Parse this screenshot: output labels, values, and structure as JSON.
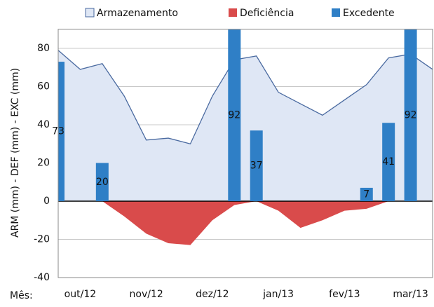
{
  "chart_data": {
    "type": "combo",
    "ylabel": "ARM (mm) - DEF (mm) - EXC (mm)",
    "xlabel": "Mês:",
    "categories": [
      null,
      "out/12",
      null,
      null,
      "nov/12",
      null,
      null,
      "dez/12",
      null,
      null,
      "jan/13",
      null,
      null,
      "fev/13",
      null,
      null,
      "mar/13",
      null
    ],
    "series": [
      {
        "name": "Armazenamento",
        "type": "area",
        "color": "#dfe7f5",
        "line_color": "#4a6aa0",
        "values": [
          79,
          69,
          72,
          55,
          32,
          33,
          30,
          55,
          74,
          76,
          57,
          51,
          45,
          53,
          61,
          75,
          77,
          69
        ]
      },
      {
        "name": "Deficiência",
        "type": "area",
        "color": "#d94b4b",
        "values": [
          0,
          0,
          0,
          -8,
          -17,
          -22,
          -23,
          -10,
          -2,
          0,
          -5,
          -14,
          -10,
          -5,
          -4,
          0,
          0,
          0
        ]
      },
      {
        "name": "Excedente",
        "type": "bar",
        "color": "#2f7fc6",
        "values": [
          73,
          null,
          20,
          null,
          null,
          null,
          null,
          null,
          92,
          37,
          null,
          null,
          null,
          null,
          7,
          41,
          92,
          null
        ]
      }
    ],
    "ylim": [
      -40,
      90
    ],
    "yticks": [
      -40,
      -20,
      0,
      20,
      40,
      60,
      80
    ],
    "grid": true
  }
}
